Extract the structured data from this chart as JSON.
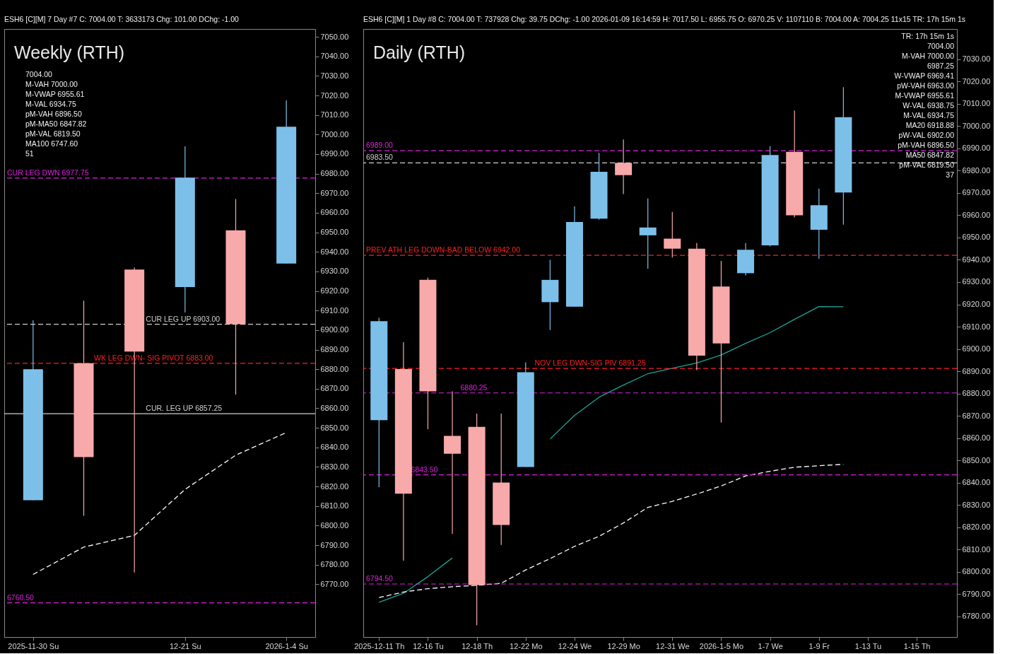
{
  "chart_data": [
    {
      "type": "candlestick",
      "title": "Weekly (RTH)",
      "categories": [
        "2025-11-30 Su",
        null,
        null,
        "12-21 Su",
        null,
        "2026-1-4 Su"
      ],
      "ohlc": [
        [
          6813,
          6905,
          6813,
          6880
        ],
        [
          6883,
          6915,
          6805,
          6835
        ],
        [
          6931,
          6932,
          6776,
          6889
        ],
        [
          6922,
          6994,
          6909,
          6978
        ],
        [
          6951,
          6967,
          6867,
          6903
        ],
        [
          6934,
          7017.5,
          6934,
          7004
        ]
      ],
      "colors": [
        "#7cc0ea",
        "#f8a9a9",
        "#f8a9a9",
        "#7cc0ea",
        "#f8a9a9",
        "#7cc0ea"
      ],
      "series": [
        {
          "type": "line",
          "color": "#ffffff",
          "line_style": "dashed",
          "values": [
            6775,
            6789,
            6795,
            6818.5,
            6836,
            6847.6
          ]
        }
      ],
      "ref_lines": [
        {
          "axis": "y",
          "value": 6977.75,
          "label": "CUR LEG DWN  6977.75",
          "color": "#e020e0",
          "line_style": "dashed"
        },
        {
          "axis": "y",
          "value": 6903.0,
          "label": "CUR LEG UP  6903.00",
          "color": "#d0d0d0",
          "line_style": "dashed"
        },
        {
          "axis": "y",
          "value": 6883.0,
          "label": "WK LEG DWN- SIG PIVOT  6883.00",
          "color": "#ff2020",
          "line_style": "dashed"
        },
        {
          "axis": "y",
          "value": 6857.25,
          "label": "CUR. LEG UP  6857.25",
          "color": "#d0d0d0",
          "line_style": "solid"
        },
        {
          "axis": "y",
          "value": 6760.5,
          "label": "6760.50",
          "color": "#e020e0",
          "line_style": "dashed"
        }
      ],
      "annotations": [
        "ESH6 [C][M]  7 Day #7 C: 7004.00 T: 3633173 Chg: 101.00 DChg: -1.00",
        "7004.00",
        "M-VAH 7000.00",
        "M-VWAP 6955.61",
        "M-VAL 6934.75",
        "pM-VAH 6896.50",
        "pM-MA50 6847.82",
        "pM-VAL 6819.50",
        "MA100 6747.60",
        "51"
      ],
      "ylim": [
        6743,
        7054
      ],
      "yticks": [
        {
          "value": 6770,
          "label": "6770.00"
        },
        {
          "value": 6780,
          "label": "6780.00"
        },
        {
          "value": 6790,
          "label": "6790.00"
        },
        {
          "value": 6800,
          "label": "6800.00"
        },
        {
          "value": 6810,
          "label": "6810.00"
        },
        {
          "value": 6820,
          "label": "6820.00"
        },
        {
          "value": 6830,
          "label": "6830.00"
        },
        {
          "value": 6840,
          "label": "6840.00"
        },
        {
          "value": 6850,
          "label": "6850.00"
        },
        {
          "value": 6860,
          "label": "6860.00"
        },
        {
          "value": 6870,
          "label": "6870.00"
        },
        {
          "value": 6880,
          "label": "6880.00"
        },
        {
          "value": 6890,
          "label": "6890.00"
        },
        {
          "value": 6900,
          "label": "6900.00"
        },
        {
          "value": 6910,
          "label": "6910.00"
        },
        {
          "value": 6920,
          "label": "6920.00"
        },
        {
          "value": 6930,
          "label": "6930.00"
        },
        {
          "value": 6940,
          "label": "6940.00"
        },
        {
          "value": 6950,
          "label": "6950.00"
        },
        {
          "value": 6960,
          "label": "6960.00"
        },
        {
          "value": 6970,
          "label": "6970.00"
        },
        {
          "value": 6980,
          "label": "6980.00"
        },
        {
          "value": 6990,
          "label": "6990.00"
        },
        {
          "value": 7000,
          "label": "7000.00"
        },
        {
          "value": 7010,
          "label": "7010.00"
        },
        {
          "value": 7020,
          "label": "7020.00"
        },
        {
          "value": 7030,
          "label": "7030.00"
        },
        {
          "value": 7040,
          "label": "7040.00"
        },
        {
          "value": 7050,
          "label": "7050.00"
        }
      ]
    },
    {
      "type": "candlestick",
      "title": "Daily (RTH)",
      "categories": [
        "2025-12-11 Th",
        null,
        "12-16 Tu",
        null,
        "12-18 Th",
        null,
        "12-22 Mo",
        null,
        "12-24 We",
        null,
        "12-29 Mo",
        null,
        "12-31 We",
        null,
        "2026-1-5 Mo",
        null,
        "1-7 We",
        null,
        "1-9 Fr",
        null,
        "1-13 Tu",
        null,
        "1-15 Th",
        null
      ],
      "ohlc": [
        [
          6868,
          6914,
          6838,
          6912.5
        ],
        [
          6891,
          6903,
          6805,
          6835
        ],
        [
          6931,
          6932,
          6864,
          6881
        ],
        [
          6861,
          6881,
          6817,
          6853
        ],
        [
          6865,
          6871,
          6776,
          6794
        ],
        [
          6840,
          6871,
          6812,
          6821
        ],
        [
          6847,
          6894,
          6847,
          6889.5
        ],
        [
          6921,
          6940,
          6908.5,
          6931
        ],
        [
          6919,
          6964,
          6919,
          6957
        ],
        [
          6958.5,
          6988,
          6958,
          6979.5
        ],
        [
          6983.5,
          6994,
          6969.5,
          6978
        ],
        [
          6951,
          6967.5,
          6936,
          6954.5
        ],
        [
          6949.5,
          6961.5,
          6941,
          6945
        ],
        [
          6945,
          6947.5,
          6890.5,
          6897
        ],
        [
          6928,
          6939.5,
          6867,
          6902.5
        ],
        [
          6934,
          6947.5,
          6933,
          6944.5
        ],
        [
          6946.5,
          6991,
          6946,
          6987
        ],
        [
          6988.5,
          7007,
          6959,
          6960
        ],
        [
          6953.5,
          6972,
          6940.5,
          6964.5
        ],
        [
          6970.25,
          7017.5,
          6955.75,
          7004
        ],
        null,
        null,
        null,
        null
      ],
      "colors": [
        "#7cc0ea",
        "#f8a9a9",
        "#f8a9a9",
        "#f8a9a9",
        "#f8a9a9",
        "#f8a9a9",
        "#7cc0ea",
        "#7cc0ea",
        "#7cc0ea",
        "#7cc0ea",
        "#f8a9a9",
        "#7cc0ea",
        "#f8a9a9",
        "#f8a9a9",
        "#f8a9a9",
        "#7cc0ea",
        "#7cc0ea",
        "#f8a9a9",
        "#7cc0ea",
        "#7cc0ea",
        null,
        null,
        null,
        null
      ],
      "series": [
        {
          "type": "line",
          "color": "#1fa39a",
          "line_style": "solid",
          "values": [
            6786.3,
            6790.3,
            6797.8,
            6806.2,
            null,
            null,
            null,
            6859.6,
            6870.2,
            6878.3,
            6883.8,
            6888.9,
            6891.3,
            6893.7,
            6897.3,
            6902.5,
            6907.3,
            6913.3,
            6919,
            6918.9,
            null,
            null,
            null,
            null
          ]
        },
        {
          "type": "line",
          "color": "#ffffff",
          "line_style": "dashed",
          "values": [
            6788.4,
            6790.9,
            6792.4,
            6793.3,
            6793.9,
            6794.8,
            6800.8,
            6805.9,
            6811.4,
            6815.9,
            6821.9,
            6828.9,
            6831.6,
            6834.9,
            6838.5,
            6843,
            6845.1,
            6846.9,
            6847.6,
            6848.2,
            null,
            null,
            null,
            null
          ]
        }
      ],
      "ref_lines": [
        {
          "axis": "y",
          "value": 6989.0,
          "label": "6989.00",
          "color": "#e020e0",
          "line_style": "dashed"
        },
        {
          "axis": "y",
          "value": 6983.5,
          "label": "6983.50",
          "color": "#d0d0d0",
          "line_style": "dashed"
        },
        {
          "axis": "y",
          "value": 6942.0,
          "label": "PREV ATH LEG DOWN-BAD BELOW  6942.00",
          "color": "#ff2020",
          "line_style": "dashed"
        },
        {
          "axis": "y",
          "value": 6891.25,
          "label": "NOV LEG DWN-SIG PIV  6891.25",
          "color": "#ff2020",
          "line_style": "dashed"
        },
        {
          "axis": "y",
          "value": 6880.25,
          "label": "6880.25",
          "color": "#e020e0",
          "line_style": "dashed"
        },
        {
          "axis": "y",
          "value": 6843.5,
          "label": "6843.50",
          "color": "#e020e0",
          "line_style": "dashed"
        },
        {
          "axis": "y",
          "value": 6794.5,
          "label": "6794.50",
          "color": "#e020e0",
          "line_style": "dashed"
        }
      ],
      "annotations": [
        "ESH6 [C][M]  1 Day  #8 C: 7004.00 T: 737928 Chg: 39.75 DChg: -1.00 2026-01-09 16:14:59 H: 7017.50 L: 6955.75 O: 6970.25 V: 1107110 B: 7004.00 A: 7004.25 11x15 TR: 17h 15m 1s",
        "TR: 17h 15m 1s",
        "7004.00",
        "M-VAH 7000.00",
        "6987.25",
        "W-VWAP 6969.41",
        "pW-VAH 6963.00",
        "M-VWAP 6955.61",
        "W-VAL 6938.75",
        "M-VAL 6934.75",
        "MA20 6918.88",
        "pW-VAL 6902.00",
        "pM-VAH 6896.50",
        "MA50 6847.82",
        "pM-VAL 6819.50",
        "37"
      ],
      "ylim": [
        6770.7,
        7043.6
      ],
      "yticks": [
        {
          "value": 6780,
          "label": "6780.00"
        },
        {
          "value": 6790,
          "label": "6790.00"
        },
        {
          "value": 6800,
          "label": "6800.00"
        },
        {
          "value": 6810,
          "label": "6810.00"
        },
        {
          "value": 6820,
          "label": "6820.00"
        },
        {
          "value": 6830,
          "label": "6830.00"
        },
        {
          "value": 6840,
          "label": "6840.00"
        },
        {
          "value": 6850,
          "label": "6850.00"
        },
        {
          "value": 6860,
          "label": "6860.00"
        },
        {
          "value": 6870,
          "label": "6870.00"
        },
        {
          "value": 6880,
          "label": "6880.00"
        },
        {
          "value": 6890,
          "label": "6890.00"
        },
        {
          "value": 6900,
          "label": "6900.00"
        },
        {
          "value": 6910,
          "label": "6910.00"
        },
        {
          "value": 6920,
          "label": "6920.00"
        },
        {
          "value": 6930,
          "label": "6930.00"
        },
        {
          "value": 6940,
          "label": "6940.00"
        },
        {
          "value": 6950,
          "label": "6950.00"
        },
        {
          "value": 6960,
          "label": "6960.00"
        },
        {
          "value": 6970,
          "label": "6970.00"
        },
        {
          "value": 6980,
          "label": "6980.00"
        },
        {
          "value": 6990,
          "label": "6990.00"
        },
        {
          "value": 7000,
          "label": "7000.00"
        },
        {
          "value": 7010,
          "label": "7010.00"
        },
        {
          "value": 7020,
          "label": "7020.00"
        },
        {
          "value": 7030,
          "label": "7030.00"
        }
      ]
    }
  ]
}
